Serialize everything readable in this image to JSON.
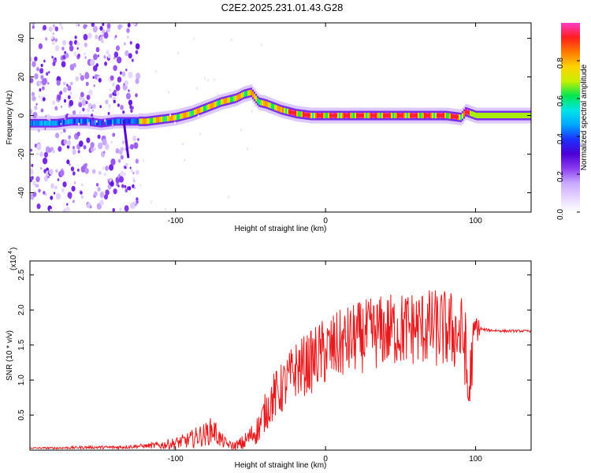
{
  "title": "C2E2.2025.231.01.43.G28",
  "chart_data": [
    {
      "type": "heatmap",
      "xlabel": "Height of straight line (km)",
      "ylabel": "Frequency (Hz)",
      "xlim": [
        -197,
        137
      ],
      "ylim": [
        -50,
        48
      ],
      "xticks": [
        -100,
        0,
        100
      ],
      "yticks": [
        40,
        20,
        0,
        -20,
        -40
      ],
      "xtick_labels": [
        "-100",
        "0",
        "100"
      ],
      "ytick_labels": [
        "40",
        "20",
        "0",
        "-20",
        "-40"
      ],
      "colorbar": {
        "label": "Normalized spectral amplitude",
        "range": [
          0,
          1
        ],
        "ticks": [
          0.0,
          0.2,
          0.4,
          0.6,
          0.8
        ],
        "tick_labels": [
          "0.0",
          "0.2",
          "0.4",
          "0.6",
          "0.8"
        ],
        "colors": [
          "#ffffff",
          "#e6d6ff",
          "#c8a8ff",
          "#8a3cf0",
          "#4a00d6",
          "#1c32ff",
          "#00a8ff",
          "#00e6e6",
          "#00e650",
          "#c8f000",
          "#ffd200",
          "#ff7800",
          "#ff1e1e",
          "#ff3cc8"
        ]
      },
      "ridge": {
        "x": [
          -197,
          -180,
          -170,
          -160,
          -150,
          -140,
          -130,
          -120,
          -110,
          -100,
          -90,
          -80,
          -70,
          -60,
          -55,
          -50,
          -45,
          -40,
          -30,
          -20,
          -10,
          0,
          10,
          20,
          40,
          60,
          80,
          90,
          93,
          100,
          137
        ],
        "freq": [
          -4,
          -4,
          -3,
          -3,
          -4,
          -3,
          -3,
          -3,
          -2,
          -1,
          1,
          4,
          7,
          9,
          11,
          12,
          7,
          6,
          3,
          1,
          0,
          0,
          0,
          0,
          0,
          0,
          0,
          -1,
          2,
          0,
          0
        ]
      }
    },
    {
      "type": "line",
      "xlabel": "Height of straight line (km)",
      "ylabel": "SNR (10 * v/v)",
      "scale_label": "(x10",
      "scale_exp": "4",
      "xlim": [
        -197,
        137
      ],
      "ylim": [
        0,
        2.7
      ],
      "xticks": [
        -100,
        0,
        100
      ],
      "yticks": [
        0.5,
        1.0,
        1.5,
        2.0,
        2.5
      ],
      "xtick_labels": [
        "-100",
        "0",
        "100"
      ],
      "ytick_labels": [
        "0.5",
        "1.0",
        "1.5",
        "2.0",
        "2.5"
      ],
      "color": "#e8191c",
      "series": [
        {
          "x": [
            -197,
            -180,
            -160,
            -140,
            -130,
            -110,
            -100,
            -90,
            -85,
            -80,
            -75,
            -70,
            -65,
            -60,
            -55,
            -50,
            -45,
            -40,
            -35,
            -30,
            -25,
            -20,
            -15,
            -10,
            -5,
            0,
            5,
            10,
            15,
            20,
            25,
            30,
            35,
            40,
            45,
            50,
            55,
            60,
            65,
            70,
            75,
            80,
            85,
            90,
            93,
            95,
            98,
            100,
            105,
            110,
            120,
            137
          ],
          "values": [
            0.03,
            0.03,
            0.04,
            0.04,
            0.05,
            0.07,
            0.1,
            0.15,
            0.2,
            0.22,
            0.3,
            0.15,
            0.08,
            0.05,
            0.1,
            0.2,
            0.3,
            0.55,
            0.75,
            0.85,
            1.0,
            1.15,
            1.2,
            1.25,
            1.35,
            1.4,
            1.45,
            1.5,
            1.55,
            1.6,
            1.62,
            1.65,
            1.68,
            1.7,
            1.72,
            1.72,
            1.74,
            1.75,
            1.75,
            1.74,
            1.73,
            1.72,
            1.7,
            1.65,
            1.5,
            0.7,
            1.4,
            1.75,
            1.72,
            1.71,
            1.7,
            1.7
          ]
        }
      ],
      "series_noise": [
        {
          "x": -197,
          "amp": 0.01
        },
        {
          "x": -120,
          "amp": 0.03
        },
        {
          "x": -95,
          "amp": 0.1
        },
        {
          "x": -75,
          "amp": 0.2
        },
        {
          "x": -65,
          "amp": 0.05
        },
        {
          "x": -50,
          "amp": 0.15
        },
        {
          "x": -35,
          "amp": 0.35
        },
        {
          "x": 0,
          "amp": 0.5
        },
        {
          "x": 60,
          "amp": 0.55
        },
        {
          "x": 95,
          "amp": 0.6
        },
        {
          "x": 104,
          "amp": 0.02
        },
        {
          "x": 137,
          "amp": 0.015
        }
      ]
    }
  ]
}
